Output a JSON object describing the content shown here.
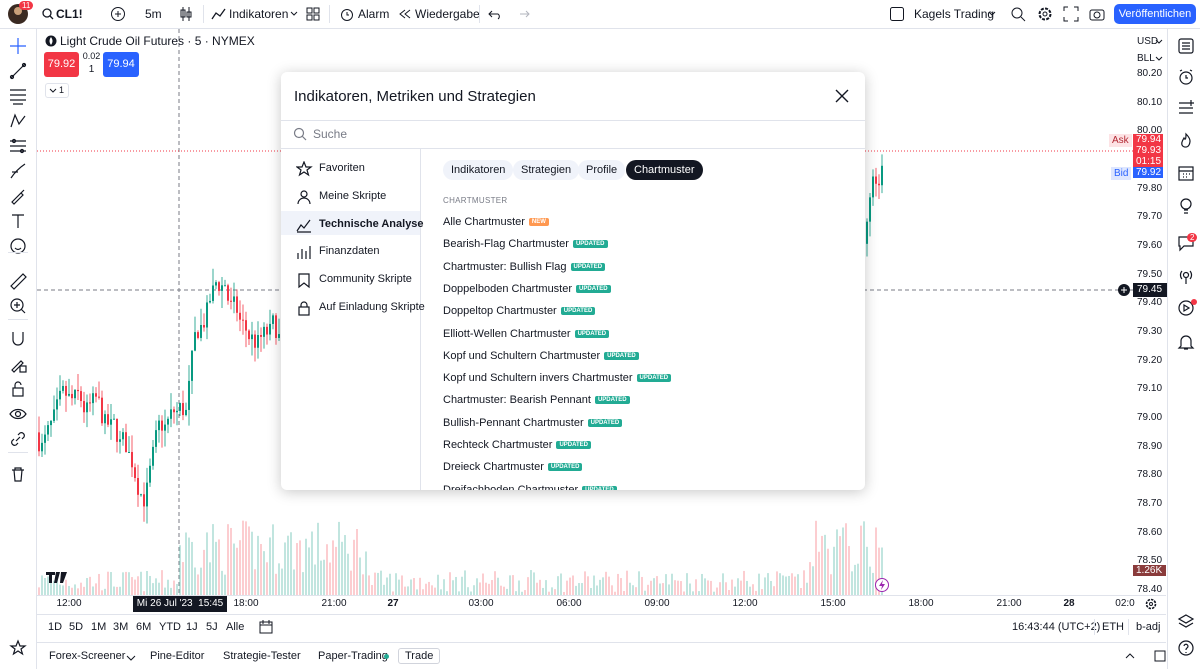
{
  "toolbar": {
    "avatar_badge": "11",
    "symbol": "CL1!",
    "interval": "5m",
    "indicators": "Indikatoren",
    "alert": "Alarm",
    "replay": "Wiedergabe",
    "layout": "Kagels Trading",
    "publish": "Veröffentlichen"
  },
  "legend": {
    "title": "Light Crude Oil Futures · 5 · NYMEX",
    "sell": "79.92",
    "spread": "0.02",
    "quantity": "1",
    "buy": "79.94",
    "indicator_count": "1"
  },
  "price_axis": {
    "currency": "USD",
    "unit": "BLL",
    "ticks": [
      "80.20",
      "80.10",
      "80.00",
      "79.90",
      "79.80",
      "79.70",
      "79.60",
      "79.50",
      "79.40",
      "79.30",
      "79.20",
      "79.10",
      "79.00",
      "78.90",
      "78.80",
      "78.70",
      "78.60",
      "78.50",
      "78.40"
    ],
    "ask_label": "Ask",
    "ask": "79.94",
    "last": "79.93",
    "countdown": "01:15",
    "bid_label": "Bid",
    "bid": "79.92",
    "crosshair": "79.45",
    "volume": "1.26K"
  },
  "time_axis": {
    "labels": [
      "12:00",
      "18:00",
      "21:00",
      "27",
      "03:00",
      "06:00",
      "09:00",
      "12:00",
      "15:00",
      "18:00",
      "21:00",
      "28",
      "02:0"
    ],
    "crosshair": "Mi 26 Jul '23  15:45"
  },
  "ranges": [
    "1D",
    "5D",
    "1M",
    "3M",
    "6M",
    "YTD",
    "1J",
    "5J",
    "Alle"
  ],
  "status": {
    "clock": "16:43:44 (UTC+2)",
    "session": "ETH",
    "adjustment": "b-adj"
  },
  "bottom_tabs": [
    "Forex-Screener",
    "Pine-Editor",
    "Strategie-Tester",
    "Paper-Trading",
    "Trade"
  ],
  "sidebar": {
    "badge": "2"
  },
  "dialog": {
    "title": "Indikatoren, Metriken und Strategien",
    "search_placeholder": "Suche",
    "nav": [
      "Favoriten",
      "Meine Skripte",
      "Technische Analyse",
      "Finanzdaten",
      "Community Skripte",
      "Auf Einladung Skripte"
    ],
    "tabs": [
      "Indikatoren",
      "Strategien",
      "Profile",
      "Chartmuster"
    ],
    "section": "CHARTMUSTER",
    "items": [
      {
        "name": "Alle Chartmuster",
        "badge": "NEW"
      },
      {
        "name": "Bearish-Flag Chartmuster",
        "badge": "UPDATED"
      },
      {
        "name": "Chartmuster: Bullish Flag",
        "badge": "UPDATED"
      },
      {
        "name": "Doppelboden Chartmuster",
        "badge": "UPDATED"
      },
      {
        "name": "Doppeltop Chartmuster",
        "badge": "UPDATED"
      },
      {
        "name": "Elliott-Wellen Chartmuster",
        "badge": "UPDATED"
      },
      {
        "name": "Kopf und Schultern Chartmuster",
        "badge": "UPDATED"
      },
      {
        "name": "Kopf und Schultern invers Chartmuster",
        "badge": "UPDATED"
      },
      {
        "name": "Chartmuster: Bearish Pennant",
        "badge": "UPDATED"
      },
      {
        "name": "Bullish-Pennant Chartmuster",
        "badge": "UPDATED"
      },
      {
        "name": "Rechteck Chartmuster",
        "badge": "UPDATED"
      },
      {
        "name": "Dreieck Chartmuster",
        "badge": "UPDATED"
      },
      {
        "name": "Dreifachboden Chartmuster",
        "badge": "UPDATED"
      }
    ]
  }
}
